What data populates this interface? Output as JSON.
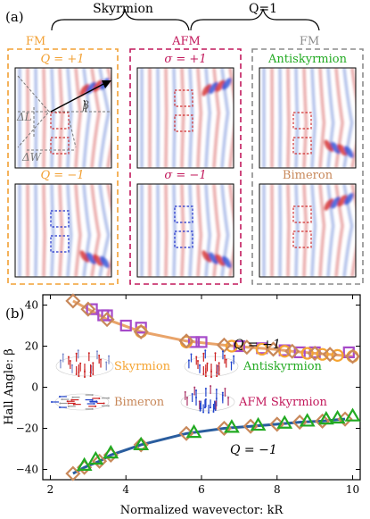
{
  "panel_a": {
    "label": "(a)",
    "brace_left": "Skyrmion",
    "brace_right": "Q=1",
    "groups": [
      {
        "name": "FM",
        "color": "#f2a033"
      },
      {
        "name": "AFM",
        "color": "#c2185b"
      },
      {
        "name": "FM",
        "color": "#8c8c8c"
      }
    ],
    "subpanels": [
      {
        "label": "Q = +1",
        "color": "#f2a033"
      },
      {
        "label": "Q = −1",
        "color": "#f2a033"
      },
      {
        "label": "σ = +1",
        "color": "#c2185b"
      },
      {
        "label": "σ = −1",
        "color": "#c2185b"
      },
      {
        "label": "Antiskyrmion",
        "color": "#22aa22"
      },
      {
        "label": "Bimeron",
        "color": "#c8885a"
      }
    ],
    "annotations": {
      "beta": "β",
      "dL": "ΔL",
      "dW": "ΔW"
    }
  },
  "panel_b": {
    "label": "(b)",
    "q_plus": "Q = +1",
    "q_minus": "Q = −1",
    "legend": [
      {
        "name": "Skyrmion",
        "color": "#f5a431",
        "icon": "skyrmion-icon"
      },
      {
        "name": "Antiskyrmion",
        "color": "#22aa22",
        "icon": "antiskyrmion-icon"
      },
      {
        "name": "Bimeron",
        "color": "#c8885a",
        "icon": "bimeron-icon"
      },
      {
        "name": "AFM Skyrmion",
        "color": "#c2185b",
        "icon": "afm-skyrmion-icon"
      }
    ]
  },
  "chart_data": {
    "type": "scatter",
    "xlabel": "Normalized wavevector: kR",
    "ylabel": "Hall Angle: β",
    "xlim": [
      1.8,
      10.2
    ],
    "ylim": [
      -45,
      45
    ],
    "xticks": [
      2,
      4,
      6,
      8,
      10
    ],
    "yticks": [
      -40,
      -20,
      0,
      20,
      40
    ],
    "series": [
      {
        "name": "Skyrmion",
        "marker": "circle",
        "color": "#f5a431",
        "x": [
          4.4,
          5.6,
          6.8,
          7.6,
          8.2,
          8.8,
          9.2,
          9.6,
          10.0
        ],
        "y": [
          27,
          22,
          20,
          18.5,
          17.5,
          16.5,
          16,
          15.5,
          15
        ]
      },
      {
        "name": "Antiskyrmion",
        "marker": "triangle",
        "color": "#22aa22",
        "x": [
          2.9,
          3.2,
          3.6,
          4.4,
          5.8,
          6.8,
          7.5,
          8.2,
          8.8,
          9.3,
          9.6,
          10.0
        ],
        "y": [
          -38,
          -35,
          -32,
          -28,
          -22,
          -19.5,
          -18.5,
          -17.5,
          -16.5,
          -15.5,
          -15,
          -14
        ]
      },
      {
        "name": "Bimeron",
        "marker": "diamond",
        "color": "#c8885a",
        "x": [
          2.6,
          3.0,
          3.5,
          4.4,
          5.6,
          6.6,
          7.2,
          7.9,
          8.4,
          9.0,
          9.4,
          10.0,
          2.6,
          2.9,
          3.3,
          3.6,
          4.4,
          5.6,
          6.6,
          7.3,
          8.0,
          8.6,
          9.2,
          9.8
        ],
        "y": [
          42,
          38,
          33,
          27,
          22.5,
          20.5,
          19.5,
          18.5,
          17.5,
          16.5,
          16,
          15,
          -42,
          -39,
          -36,
          -33,
          -28,
          -22.5,
          -20,
          -19,
          -18,
          -17,
          -16.5,
          -15.5
        ]
      },
      {
        "name": "AFM Skyrmion",
        "marker": "square",
        "color": "#a64ac9",
        "x": [
          3.1,
          3.5,
          4.4,
          6.0,
          7.0,
          8.2,
          9.0,
          9.9,
          3.4,
          4.0,
          5.8,
          7.6,
          8.6
        ],
        "y": [
          38,
          35,
          29,
          22,
          20,
          18,
          17,
          17,
          35,
          30,
          22,
          19,
          17
        ]
      }
    ]
  }
}
